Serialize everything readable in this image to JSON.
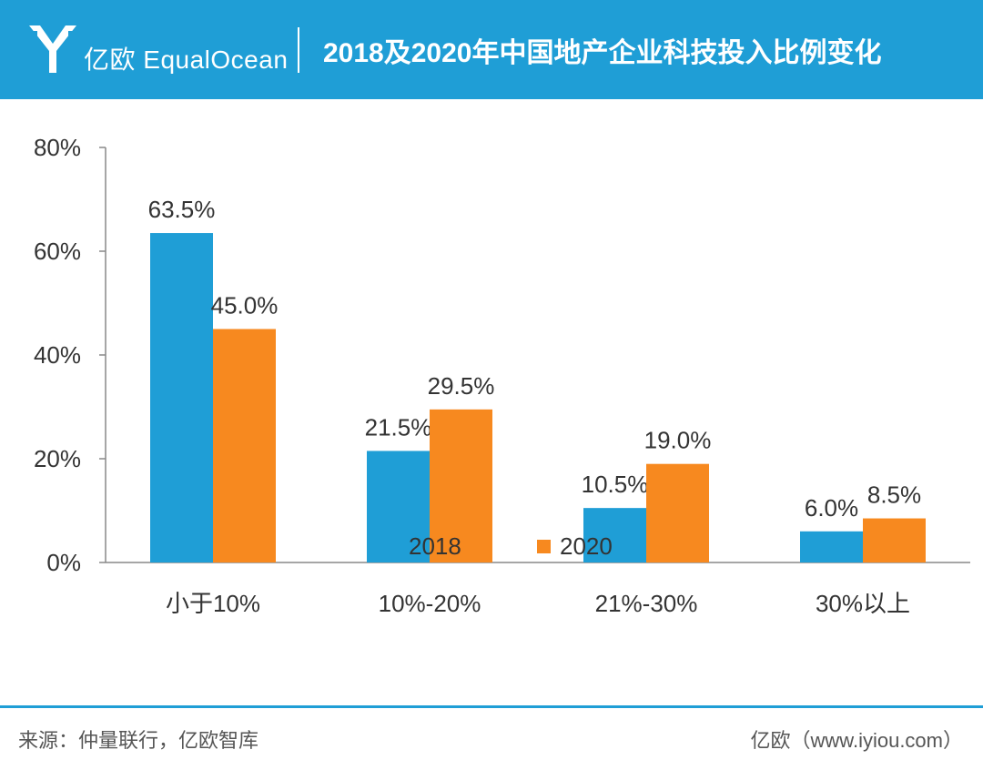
{
  "brand": {
    "logo_text": "亿欧 EqualOcean"
  },
  "header": {
    "title": "2018及2020年中国地产企业科技投入比例变化"
  },
  "chart_data": {
    "type": "bar",
    "title": "2018及2020年中国地产企业科技投入比例变化",
    "xlabel": "",
    "ylabel": "",
    "categories": [
      "小于10%",
      "10%-20%",
      "21%-30%",
      "30%以上"
    ],
    "series": [
      {
        "name": "2018",
        "values": [
          63.5,
          21.5,
          10.5,
          6.0
        ],
        "color": "#1f9ed6"
      },
      {
        "name": "2020",
        "values": [
          45.0,
          29.5,
          19.0,
          8.5
        ],
        "color": "#f7891f"
      }
    ],
    "data_labels": {
      "2018": [
        "63.5%",
        "21.5%",
        "10.5%",
        "6.0%"
      ],
      "2020": [
        "45.0%",
        "29.5%",
        "19.0%",
        "8.5%"
      ]
    },
    "ylim": [
      0,
      80
    ],
    "yticks": [
      0,
      20,
      40,
      60,
      80
    ],
    "ytick_labels": [
      "0%",
      "20%",
      "40%",
      "60%",
      "80%"
    ],
    "grid": false,
    "legend_position": "bottom-center"
  },
  "footer": {
    "source": "来源：仲量联行，亿欧智库",
    "credit": "亿欧（www.iyiou.com）"
  },
  "colors": {
    "accent": "#1f9ed6",
    "series_2018": "#1f9ed6",
    "series_2020": "#f7891f",
    "text": "#333333"
  }
}
